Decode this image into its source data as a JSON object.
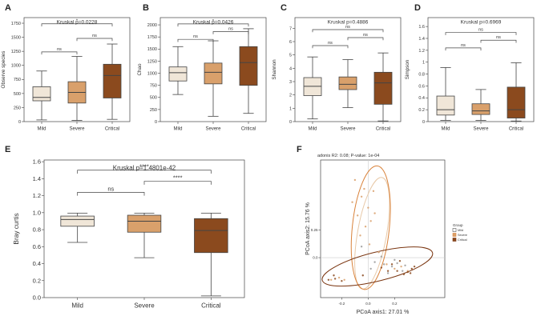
{
  "colors": {
    "mild": "#f0e6d8",
    "severe": "#d9a06b",
    "critical": "#8b4a1e",
    "line": "#444444",
    "ref": "#cccccc"
  },
  "panels": [
    {
      "label": "A",
      "title": "Kruskal p=0.0228"
    },
    {
      "label": "B",
      "title": "Kruskal p=0.0426"
    },
    {
      "label": "C",
      "title": "Kruskal p=0.4886"
    },
    {
      "label": "D",
      "title": "Kruskal p=0.6969"
    },
    {
      "label": "E",
      "title": "Kruskal p=1.4801e-42"
    },
    {
      "label": "F",
      "title": "adonis R2: 0.08; P-value: 1e-04"
    }
  ],
  "chart_data": [
    {
      "type": "box",
      "title": "Kruskal p=0.0228",
      "xlabel": "",
      "ylabel": "Observe species",
      "categories": [
        "Mild",
        "Severe",
        "Critical"
      ],
      "ylim": [
        0,
        1850
      ],
      "yticks": [
        0,
        250,
        500,
        750,
        1000,
        1250,
        1500,
        1750
      ],
      "boxes": [
        {
          "min": 30,
          "q1": 370,
          "median": 430,
          "q3": 620,
          "max": 900
        },
        {
          "min": 20,
          "q1": 330,
          "median": 520,
          "q3": 710,
          "max": 1160
        },
        {
          "min": 40,
          "q1": 420,
          "median": 820,
          "q3": 1020,
          "max": 1380
        }
      ],
      "comparisons": [
        {
          "pair": [
            0,
            1
          ],
          "label": "ns",
          "y": 1240
        },
        {
          "pair": [
            1,
            2
          ],
          "label": "ns",
          "y": 1480
        },
        {
          "pair": [
            0,
            2
          ],
          "label": "*",
          "y": 1740
        }
      ]
    },
    {
      "type": "box",
      "title": "Kruskal p=0.0426",
      "xlabel": "",
      "ylabel": "Chao",
      "categories": [
        "Mild",
        "Severe",
        "Critical"
      ],
      "ylim": [
        0,
        2150
      ],
      "yticks": [
        0,
        250,
        500,
        750,
        1000,
        1250,
        1500,
        1750,
        2000
      ],
      "boxes": [
        {
          "min": 560,
          "q1": 840,
          "median": 1010,
          "q3": 1130,
          "max": 1550
        },
        {
          "min": 110,
          "q1": 780,
          "median": 1020,
          "q3": 1210,
          "max": 1670
        },
        {
          "min": 170,
          "q1": 750,
          "median": 1220,
          "q3": 1550,
          "max": 1920
        }
      ],
      "comparisons": [
        {
          "pair": [
            0,
            1
          ],
          "label": "ns",
          "y": 1700
        },
        {
          "pair": [
            1,
            2
          ],
          "label": "ns",
          "y": 1860
        },
        {
          "pair": [
            0,
            2
          ],
          "label": "*",
          "y": 2020
        }
      ]
    },
    {
      "type": "box",
      "title": "Kruskal p=0.4886",
      "xlabel": "",
      "ylabel": "Shannon",
      "categories": [
        "Mild",
        "Severe",
        "Critical"
      ],
      "ylim": [
        0,
        7.8
      ],
      "yticks": [
        0,
        1,
        2,
        3,
        4,
        5,
        6,
        7
      ],
      "boxes": [
        {
          "min": 0.2,
          "q1": 1.95,
          "median": 2.65,
          "q3": 3.3,
          "max": 4.85
        },
        {
          "min": 1.05,
          "q1": 2.4,
          "median": 2.8,
          "q3": 3.35,
          "max": 4.65
        },
        {
          "min": 0.05,
          "q1": 1.3,
          "median": 2.9,
          "q3": 3.7,
          "max": 5.15
        }
      ],
      "comparisons": [
        {
          "pair": [
            0,
            1
          ],
          "label": "ns",
          "y": 5.7
        },
        {
          "pair": [
            1,
            2
          ],
          "label": "ns",
          "y": 6.3
        },
        {
          "pair": [
            0,
            2
          ],
          "label": "ns",
          "y": 6.9
        }
      ]
    },
    {
      "type": "box",
      "title": "Kruskal p=0.6969",
      "xlabel": "",
      "ylabel": "Simpson",
      "categories": [
        "Mild",
        "Severe",
        "Critical"
      ],
      "ylim": [
        0,
        1.75
      ],
      "yticks": [
        0,
        0.2,
        0.4,
        0.6,
        0.8,
        1.0,
        1.2,
        1.4,
        1.6
      ],
      "boxes": [
        {
          "min": 0.02,
          "q1": 0.11,
          "median": 0.2,
          "q3": 0.43,
          "max": 0.91
        },
        {
          "min": 0.02,
          "q1": 0.12,
          "median": 0.18,
          "q3": 0.3,
          "max": 0.54
        },
        {
          "min": 0.01,
          "q1": 0.06,
          "median": 0.2,
          "q3": 0.58,
          "max": 0.99
        }
      ],
      "comparisons": [
        {
          "pair": [
            0,
            1
          ],
          "label": "ns",
          "y": 1.24
        },
        {
          "pair": [
            1,
            2
          ],
          "label": "ns",
          "y": 1.37
        },
        {
          "pair": [
            0,
            2
          ],
          "label": "ns",
          "y": 1.5
        }
      ]
    },
    {
      "type": "box",
      "title": "Kruskal p=1.4801e-42",
      "xlabel": "",
      "ylabel": "Bray curtis",
      "categories": [
        "Mild",
        "Severe",
        "Critical"
      ],
      "ylim": [
        0,
        1.62
      ],
      "yticks": [
        0,
        0.2,
        0.4,
        0.6,
        0.8,
        1.0,
        1.2,
        1.4,
        1.6
      ],
      "ytick_labels": [
        "0.0",
        "0.2",
        "0.4",
        "0.6",
        "0.8",
        "1.0",
        "1.2",
        "1.4",
        "1.6"
      ],
      "boxes": [
        {
          "min": 0.65,
          "q1": 0.84,
          "median": 0.92,
          "q3": 0.96,
          "max": 0.995
        },
        {
          "min": 0.47,
          "q1": 0.77,
          "median": 0.9,
          "q3": 0.97,
          "max": 0.995
        },
        {
          "min": 0.02,
          "q1": 0.53,
          "median": 0.79,
          "q3": 0.93,
          "max": 0.995
        }
      ],
      "comparisons": [
        {
          "pair": [
            0,
            1
          ],
          "label": "ns",
          "y": 1.24
        },
        {
          "pair": [
            1,
            2
          ],
          "label": "****",
          "y": 1.37
        },
        {
          "pair": [
            0,
            2
          ],
          "label": "****",
          "y": 1.5
        }
      ]
    },
    {
      "type": "scatter",
      "title": "adonis R2: 0.08; P-value: 1e-04",
      "xlabel": "PCoA axis1:  27.01 %",
      "ylabel": "PCoA axis2:  15.76 %",
      "xlim": [
        -0.36,
        0.58
      ],
      "ylim": [
        -0.36,
        0.88
      ],
      "xticks": [
        -0.2,
        0.0,
        0.2
      ],
      "xtick_labels": [
        "-0.2",
        "0.0",
        "0.2"
      ],
      "yticks": [
        0.0,
        0.25
      ],
      "ytick_labels": [
        "0.0",
        "0.25"
      ],
      "legend": {
        "title": "Group",
        "position": "right",
        "entries": [
          "Mild",
          "Severe",
          "Critical"
        ]
      },
      "ellipses": [
        {
          "group": "Mild",
          "cx": 0.03,
          "cy": 0.22,
          "rx": 0.11,
          "ry": 0.51,
          "angle": 10
        },
        {
          "group": "Severe",
          "cx": 0.02,
          "cy": 0.27,
          "rx": 0.14,
          "ry": 0.56,
          "angle": 6
        },
        {
          "group": "Critical",
          "cx": 0.07,
          "cy": -0.08,
          "rx": 0.43,
          "ry": 0.13,
          "angle": -14
        }
      ],
      "series": [
        {
          "name": "Mild",
          "points": [
            [
              0.05,
              -0.04
            ],
            [
              0.12,
              -0.06
            ],
            [
              0.18,
              -0.08
            ],
            [
              0.22,
              -0.05
            ],
            [
              0.1,
              0.01
            ],
            [
              0.02,
              -0.1
            ],
            [
              0.26,
              -0.12
            ],
            [
              0.15,
              -0.14
            ],
            [
              0.08,
              0.05
            ],
            [
              0.2,
              -0.02
            ],
            [
              -0.05,
              0.1
            ],
            [
              0.28,
              -0.07
            ]
          ]
        },
        {
          "name": "Severe",
          "points": [
            [
              -0.05,
              0.55
            ],
            [
              0.0,
              0.45
            ],
            [
              -0.08,
              0.38
            ],
            [
              -0.03,
              0.62
            ],
            [
              0.02,
              0.33
            ],
            [
              -0.02,
              0.28
            ],
            [
              -0.12,
              0.5
            ],
            [
              0.04,
              0.6
            ],
            [
              -0.06,
              0.2
            ],
            [
              0.01,
              0.12
            ],
            [
              0.08,
              0.05
            ],
            [
              0.14,
              -0.06
            ],
            [
              0.2,
              -0.1
            ],
            [
              0.25,
              -0.08
            ],
            [
              0.3,
              -0.12
            ],
            [
              -0.22,
              -0.18
            ],
            [
              -0.28,
              -0.2
            ],
            [
              -0.18,
              -0.2
            ],
            [
              -0.1,
              0.7
            ],
            [
              0.05,
              0.4
            ]
          ]
        },
        {
          "name": "Critical",
          "points": [
            [
              -0.3,
              -0.2
            ],
            [
              -0.25,
              -0.19
            ],
            [
              -0.2,
              -0.21
            ],
            [
              -0.26,
              -0.16
            ],
            [
              0.3,
              -0.13
            ],
            [
              0.27,
              -0.15
            ],
            [
              0.33,
              -0.1
            ],
            [
              0.22,
              -0.12
            ],
            [
              0.18,
              -0.06
            ],
            [
              0.1,
              -0.09
            ],
            [
              0.35,
              -0.08
            ],
            [
              0.24,
              -0.03
            ],
            [
              0.15,
              -0.12
            ],
            [
              0.32,
              -0.14
            ],
            [
              -0.04,
              -0.16
            ]
          ]
        }
      ]
    }
  ]
}
